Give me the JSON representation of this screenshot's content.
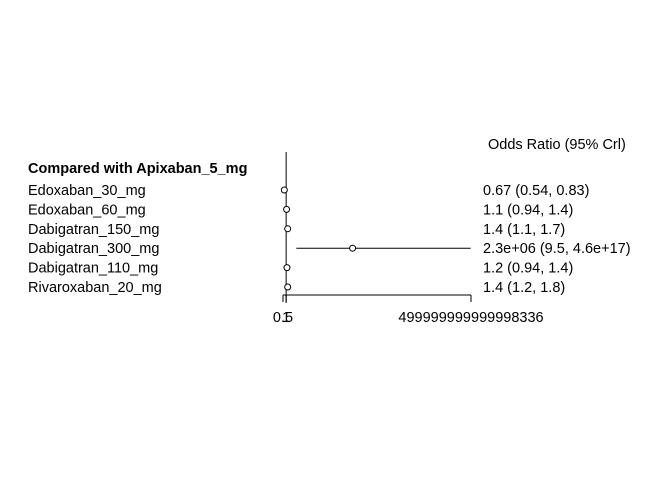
{
  "chart_data": {
    "type": "forest",
    "column_header": "Odds Ratio (95% Crl)",
    "group_header": "Compared with Apixaban_5_mg",
    "reference_line": 1,
    "xlim": [
      0.5,
      499999999999998336
    ],
    "x_ticks": [
      {
        "value": 0.5,
        "label": "0.5"
      },
      {
        "value": 1,
        "label": "1"
      },
      {
        "value": 499999999999998336,
        "label": "499999999999998336"
      }
    ],
    "rows": [
      {
        "label": "Edoxaban_30_mg",
        "or": 0.67,
        "lo": 0.54,
        "hi": 0.83,
        "text": "0.67 (0.54, 0.83)"
      },
      {
        "label": "Edoxaban_60_mg",
        "or": 1.1,
        "lo": 0.94,
        "hi": 1.4,
        "text": "1.1 (0.94, 1.4)"
      },
      {
        "label": "Dabigatran_150_mg",
        "or": 1.4,
        "lo": 1.1,
        "hi": 1.7,
        "text": "1.4 (1.1, 1.7)"
      },
      {
        "label": "Dabigatran_300_mg",
        "or": 2300000.0,
        "lo": 9.5,
        "hi": 4.6e+17,
        "text": "2.3e+06 (9.5, 4.6e+17)"
      },
      {
        "label": "Dabigatran_110_mg",
        "or": 1.2,
        "lo": 0.94,
        "hi": 1.4,
        "text": "1.2 (0.94, 1.4)"
      },
      {
        "label": "Rivaroxaban_20_mg",
        "or": 1.4,
        "lo": 1.2,
        "hi": 1.8,
        "text": "1.4 (1.2, 1.8)"
      }
    ]
  }
}
